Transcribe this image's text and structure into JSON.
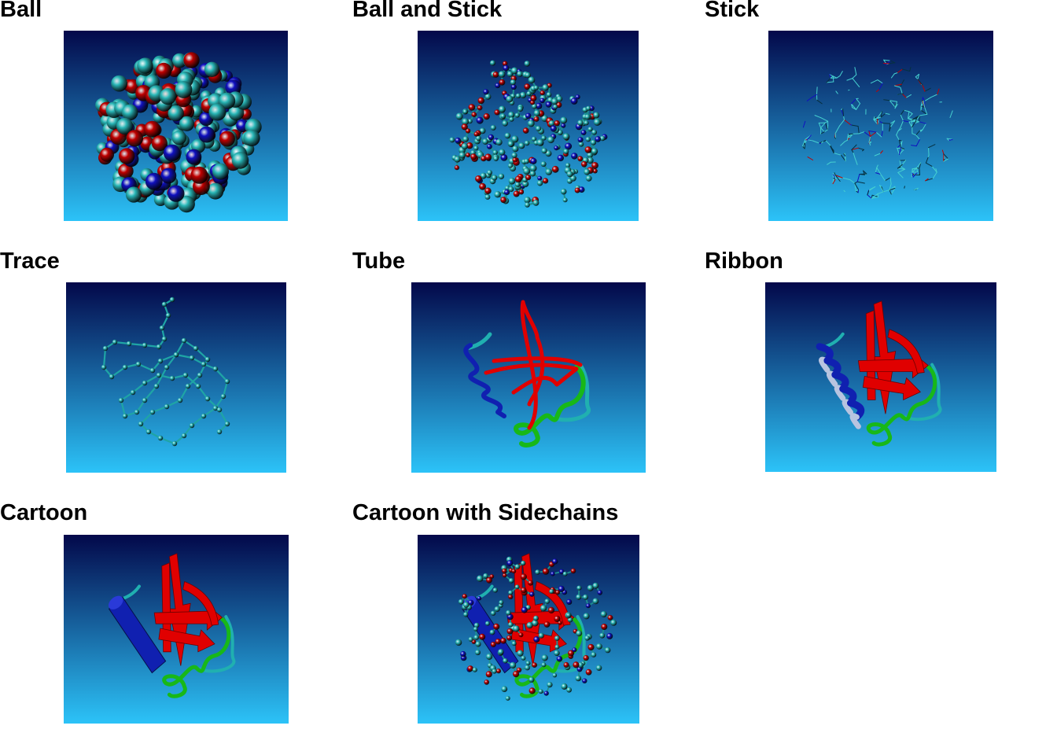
{
  "colors": {
    "bg_top": "#03084a",
    "bg_bottom": "#2cc3f8",
    "carbon": "#2ab8b8",
    "oxygen": "#c00000",
    "nitrogen": "#1010c0",
    "strand": "#e00000",
    "helix": "#1020b0",
    "loop": "#18b818",
    "coil": "#20b0b0"
  },
  "panels": [
    {
      "label": "Ball",
      "style": "ball"
    },
    {
      "label": "Ball and Stick",
      "style": "ballstick"
    },
    {
      "label": "Stick",
      "style": "stick"
    },
    {
      "label": "Trace",
      "style": "trace"
    },
    {
      "label": "Tube",
      "style": "tube"
    },
    {
      "label": "Ribbon",
      "style": "ribbon"
    },
    {
      "label": "Cartoon",
      "style": "cartoon"
    },
    {
      "label": "Cartoon with Sidechains",
      "style": "cartoonside"
    }
  ]
}
